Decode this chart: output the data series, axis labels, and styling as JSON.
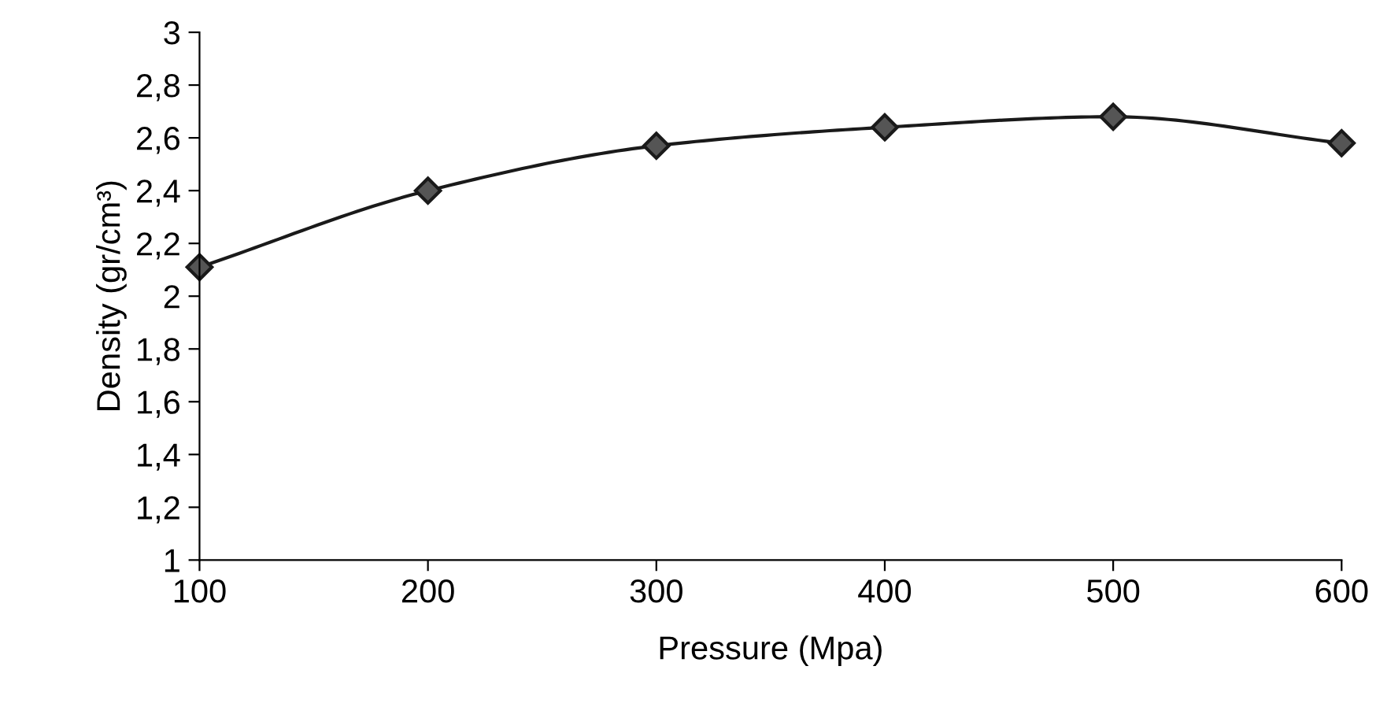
{
  "chart_data": {
    "type": "line",
    "xlabel": "Pressure (Mpa)",
    "ylabel": "Density (gr/cm³)",
    "x": [
      100,
      200,
      300,
      400,
      500,
      600
    ],
    "series": [
      {
        "color": "#1a1a1a",
        "values": [
          2.11,
          2.4,
          2.57,
          2.64,
          2.68,
          2.58
        ]
      }
    ],
    "xlim": [
      100,
      600
    ],
    "xticks": [
      100,
      200,
      300,
      400,
      500,
      600
    ],
    "ylim": [
      1,
      3
    ],
    "yticks": [
      1,
      {
        "value": 1.2,
        "label": "1,2"
      },
      {
        "value": 1.4,
        "label": "1,4"
      },
      {
        "value": 1.6,
        "label": "1,6"
      },
      {
        "value": 1.8,
        "label": "1,8"
      },
      2,
      {
        "value": 2.2,
        "label": "2,2"
      },
      {
        "value": 2.4,
        "label": "2,4"
      },
      {
        "value": 2.6,
        "label": "2,6"
      },
      {
        "value": 2.8,
        "label": "2,8"
      },
      3
    ],
    "marker": "diamond",
    "line_style": "solid",
    "grid": false,
    "legend": false
  }
}
